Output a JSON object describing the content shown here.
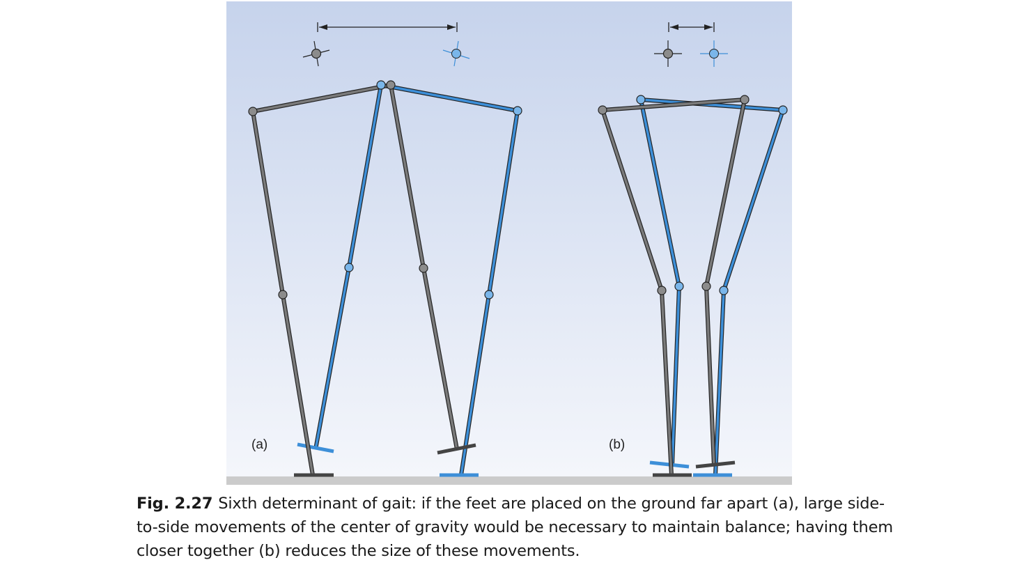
{
  "figure": {
    "panels": [
      {
        "label": "(a)"
      },
      {
        "label": "(b)"
      }
    ],
    "colors": {
      "background_top": "#c6d3ec",
      "background_bottom": "#f4f6fb",
      "ground": "#cbcbcb",
      "gray_limb": "#6f6f6f",
      "gray_joint": "#8c8c8c",
      "blue_limb": "#3d8fd8",
      "blue_joint": "#7ab6ea",
      "outline": "#222222"
    }
  },
  "caption": {
    "number": "Fig. 2.27",
    "text": "Sixth determinant of gait: if the feet are placed on the ground far apart (a), large side-to-side movements of the center of gravity would be necessary to maintain balance; having them closer together (b) reduces the size of these movements."
  }
}
